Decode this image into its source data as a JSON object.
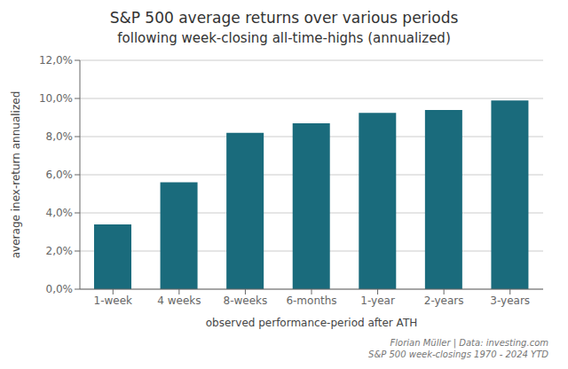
{
  "chart_data": {
    "type": "bar",
    "title": "S&P 500 average returns over various periods",
    "subtitle": "following week-closing all-time-highs (annualized)",
    "x_label": "observed performance-period after ATH",
    "y_label": "average inex-return annualized",
    "categories": [
      "1-week",
      "4 weeks",
      "8-weeks",
      "6-months",
      "1-year",
      "2-years",
      "3-years"
    ],
    "values": [
      3.4,
      5.6,
      8.2,
      8.7,
      9.25,
      9.4,
      9.9
    ],
    "color": "#1a6b7c",
    "ylim": [
      0,
      12
    ],
    "yticks": [
      {
        "value": 0,
        "label": "0,0%"
      },
      {
        "value": 2,
        "label": "2,0%"
      },
      {
        "value": 4,
        "label": "4,0%"
      },
      {
        "value": 6,
        "label": "6,0%"
      },
      {
        "value": 8,
        "label": "8,0%"
      },
      {
        "value": 10,
        "label": "10,0%"
      },
      {
        "value": 12,
        "label": "12,0%"
      }
    ],
    "grid": true,
    "annotations": [
      "Florian Müller | Data: investing.com",
      "S&P 500 week-closings 1970 - 2024 YTD"
    ]
  }
}
